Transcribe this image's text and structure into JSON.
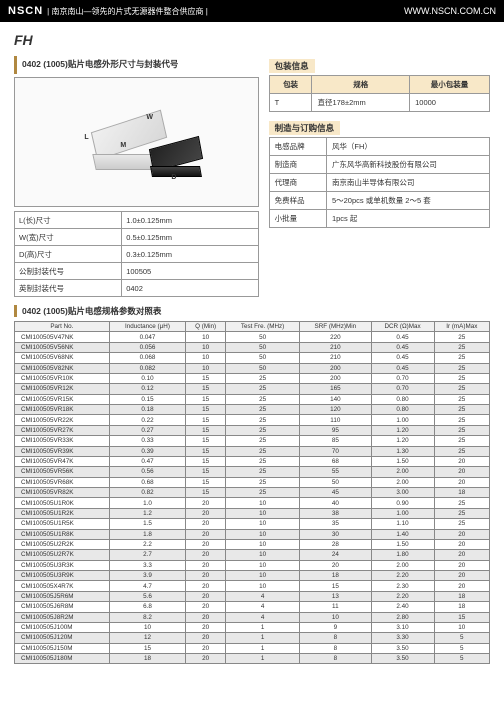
{
  "header": {
    "logo": "NSCN",
    "tagline": "| 南京南山—领先的片式无源器件整合供应商 |",
    "url": "WWW.NSCN.COM.CN"
  },
  "fh_icon": "FH",
  "section1_title": "0402 (1005)贴片电感外形尺寸与封装代号",
  "dims_table": [
    [
      "L(长)尺寸",
      "1.0±0.125mm"
    ],
    [
      "W(宽)尺寸",
      "0.5±0.125mm"
    ],
    [
      "D(高)尺寸",
      "0.3±0.125mm"
    ],
    [
      "公制封装代号",
      "100505"
    ],
    [
      "英制封装代号",
      "0402"
    ]
  ],
  "pack_title": "包装信息",
  "pack_header": [
    "包装",
    "规格",
    "最小包装量"
  ],
  "pack_row": [
    "T",
    "直径178±2mm",
    "10000"
  ],
  "order_title": "制造与订购信息",
  "order_rows": [
    [
      "电感品牌",
      "风华（FH）"
    ],
    [
      "制造商",
      "广东风华高新科技股份有限公司"
    ],
    [
      "代理商",
      "南京南山半导体有限公司"
    ],
    [
      "免费样品",
      "5～20pcs 或单机数量 2～5 套"
    ],
    [
      "小批量",
      "1pcs 起"
    ]
  ],
  "spec_title": "0402 (1005)贴片电感规格参数对照表",
  "spec_header": [
    "Part No.",
    "Inductance (μH)",
    "Q (Min)",
    "Test Fre. (MHz)",
    "SRF (MHz)Min",
    "DCR (Ω)Max",
    "Ir (mA)Max"
  ],
  "spec_rows": [
    {
      "d": [
        "CMI100505V47NK",
        "0.047",
        "10",
        "50",
        "220",
        "0.45",
        "25"
      ],
      "s": 0
    },
    {
      "d": [
        "CMI100505V56NK",
        "0.056",
        "10",
        "50",
        "210",
        "0.45",
        "25"
      ],
      "s": 1
    },
    {
      "d": [
        "CMI100505V68NK",
        "0.068",
        "10",
        "50",
        "210",
        "0.45",
        "25"
      ],
      "s": 0
    },
    {
      "d": [
        "CMI100505V82NK",
        "0.082",
        "10",
        "50",
        "200",
        "0.45",
        "25"
      ],
      "s": 1
    },
    {
      "d": [
        "CMI100505VR10K",
        "0.10",
        "15",
        "25",
        "200",
        "0.70",
        "25"
      ],
      "s": 0
    },
    {
      "d": [
        "CMI100505VR12K",
        "0.12",
        "15",
        "25",
        "165",
        "0.70",
        "25"
      ],
      "s": 1
    },
    {
      "d": [
        "CMI100505VR15K",
        "0.15",
        "15",
        "25",
        "140",
        "0.80",
        "25"
      ],
      "s": 0
    },
    {
      "d": [
        "CMI100505VR18K",
        "0.18",
        "15",
        "25",
        "120",
        "0.80",
        "25"
      ],
      "s": 1
    },
    {
      "d": [
        "CMI100505VR22K",
        "0.22",
        "15",
        "25",
        "110",
        "1.00",
        "25"
      ],
      "s": 0
    },
    {
      "d": [
        "CMI100505VR27K",
        "0.27",
        "15",
        "25",
        "95",
        "1.20",
        "25"
      ],
      "s": 1
    },
    {
      "d": [
        "CMI100505VR33K",
        "0.33",
        "15",
        "25",
        "85",
        "1.20",
        "25"
      ],
      "s": 0
    },
    {
      "d": [
        "CMI100505VR39K",
        "0.39",
        "15",
        "25",
        "70",
        "1.30",
        "25"
      ],
      "s": 1
    },
    {
      "d": [
        "CMI100505VR47K",
        "0.47",
        "15",
        "25",
        "68",
        "1.50",
        "20"
      ],
      "s": 0
    },
    {
      "d": [
        "CMI100505VR56K",
        "0.56",
        "15",
        "25",
        "55",
        "2.00",
        "20"
      ],
      "s": 1
    },
    {
      "d": [
        "CMI100505VR68K",
        "0.68",
        "15",
        "25",
        "50",
        "2.00",
        "20"
      ],
      "s": 0
    },
    {
      "d": [
        "CMI100505VR82K",
        "0.82",
        "15",
        "25",
        "45",
        "3.00",
        "18"
      ],
      "s": 1
    },
    {
      "d": [
        "CMI100505U1R0K",
        "1.0",
        "20",
        "10",
        "40",
        "0.90",
        "25"
      ],
      "s": 0
    },
    {
      "d": [
        "CMI100505U1R2K",
        "1.2",
        "20",
        "10",
        "38",
        "1.00",
        "25"
      ],
      "s": 1
    },
    {
      "d": [
        "CMI100505U1R5K",
        "1.5",
        "20",
        "10",
        "35",
        "1.10",
        "25"
      ],
      "s": 0
    },
    {
      "d": [
        "CMI100505U1R8K",
        "1.8",
        "20",
        "10",
        "30",
        "1.40",
        "20"
      ],
      "s": 1
    },
    {
      "d": [
        "CMI100505U2R2K",
        "2.2",
        "20",
        "10",
        "28",
        "1.50",
        "20"
      ],
      "s": 0
    },
    {
      "d": [
        "CMI100505U2R7K",
        "2.7",
        "20",
        "10",
        "24",
        "1.80",
        "20"
      ],
      "s": 1
    },
    {
      "d": [
        "CMI100505U3R3K",
        "3.3",
        "20",
        "10",
        "20",
        "2.00",
        "20"
      ],
      "s": 0
    },
    {
      "d": [
        "CMI100505U3R9K",
        "3.9",
        "20",
        "10",
        "18",
        "2.20",
        "20"
      ],
      "s": 1
    },
    {
      "d": [
        "CMI100505X4R7K",
        "4.7",
        "20",
        "10",
        "15",
        "2.30",
        "20"
      ],
      "s": 0
    },
    {
      "d": [
        "CMI100505J5R6M",
        "5.6",
        "20",
        "4",
        "13",
        "2.20",
        "18"
      ],
      "s": 1
    },
    {
      "d": [
        "CMI100505J6R8M",
        "6.8",
        "20",
        "4",
        "11",
        "2.40",
        "18"
      ],
      "s": 0
    },
    {
      "d": [
        "CMI100505J8R2M",
        "8.2",
        "20",
        "4",
        "10",
        "2.80",
        "15"
      ],
      "s": 1
    },
    {
      "d": [
        "CMI100505J100M",
        "10",
        "20",
        "1",
        "9",
        "3.10",
        "10"
      ],
      "s": 0
    },
    {
      "d": [
        "CMI100505J120M",
        "12",
        "20",
        "1",
        "8",
        "3.30",
        "5"
      ],
      "s": 1
    },
    {
      "d": [
        "CMI100505J150M",
        "15",
        "20",
        "1",
        "8",
        "3.50",
        "5"
      ],
      "s": 0
    },
    {
      "d": [
        "CMI100505J180M",
        "18",
        "20",
        "1",
        "8",
        "3.50",
        "5"
      ],
      "s": 1
    }
  ],
  "dim_labels": {
    "L": "L",
    "W": "W",
    "M": "M",
    "D": "D"
  }
}
